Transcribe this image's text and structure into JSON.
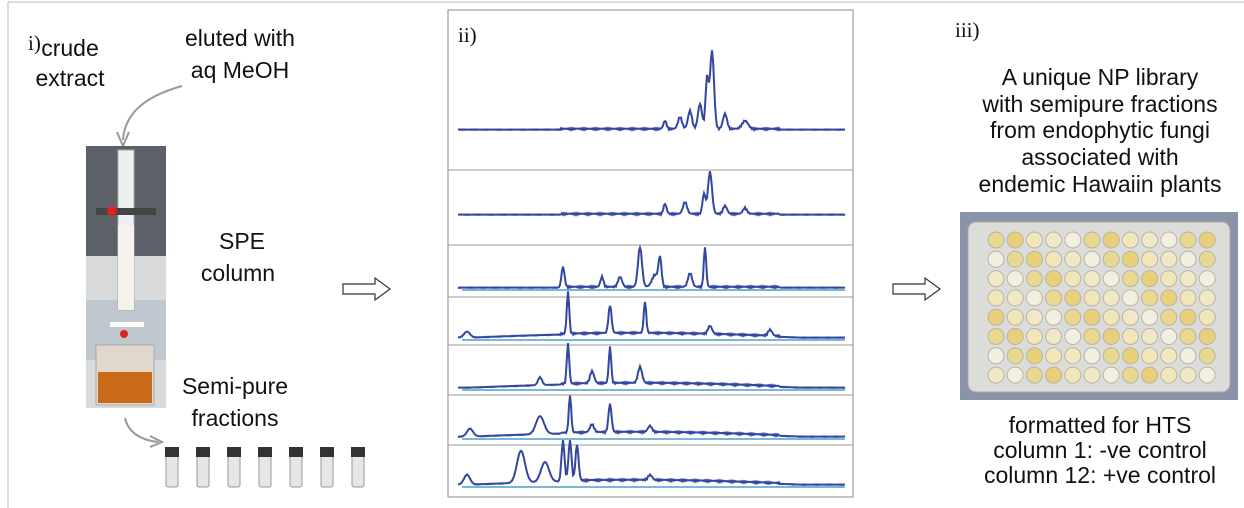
{
  "panel_i": {
    "label": "i)",
    "crude_extract": [
      "crude",
      "extract"
    ],
    "eluent": [
      "eluted with",
      "aq MeOH"
    ],
    "column": [
      "SPE",
      "column"
    ],
    "fractions": [
      "Semi-pure",
      "fractions"
    ]
  },
  "panel_ii": {
    "label": "ii)"
  },
  "panel_iii": {
    "label": "iii)",
    "description": [
      "A unique NP library",
      "with semipure fractions",
      "from endophytic fungi",
      "associated with",
      "endemic Hawaiin plants"
    ],
    "footer": [
      "formatted for HTS",
      "column 1: -ve control",
      "column 12: +ve control"
    ]
  }
}
